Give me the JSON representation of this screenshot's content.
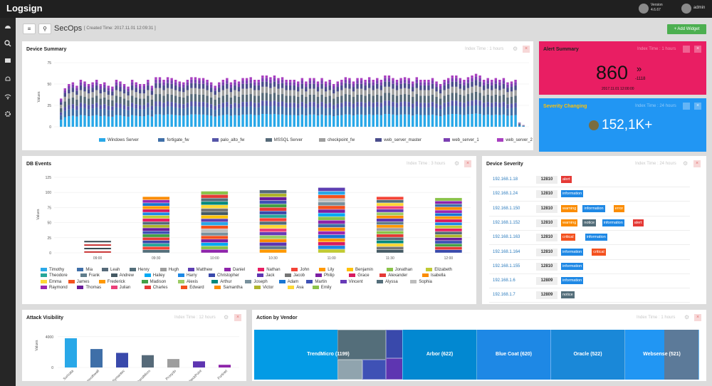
{
  "app": {
    "title": "Logsign",
    "version_label": "Version",
    "version_value": "4.6.67",
    "user": "admin"
  },
  "header": {
    "menu_icon": "menu-icon",
    "search_icon": "search-icon",
    "title": "SecOps",
    "created": "[ Created Time: 2017.11.01 12:09:31 ]",
    "add_widget": "+ Add Widget"
  },
  "sidebar": {
    "items": [
      "dashboard-icon",
      "search-icon",
      "reports-icon",
      "alarm-icon",
      "network-icon",
      "settings-icon"
    ]
  },
  "device_summary": {
    "title": "Device Summary",
    "meta": "Index Time : 1 hours",
    "chart_data": {
      "type": "bar",
      "stacked": true,
      "ylabel": "Values",
      "yticks": [
        0,
        25,
        50,
        75
      ],
      "ylim": [
        0,
        75
      ],
      "series": [
        {
          "name": "Windows Server",
          "color": "#29a8e8"
        },
        {
          "name": "fortigate_fw",
          "color": "#3f6fa8"
        },
        {
          "name": "palo_alto_fw",
          "color": "#5555a8"
        },
        {
          "name": "MSSQL Server",
          "color": "#566a79"
        },
        {
          "name": "checkpoint_fw",
          "color": "#9e9e9e"
        },
        {
          "name": "web_server_master",
          "color": "#4a4d8c"
        },
        {
          "name": "web_server_1",
          "color": "#7b3fb2"
        },
        {
          "name": "web_server_2",
          "color": "#a83fc0"
        }
      ],
      "totals": [
        33,
        45,
        50,
        52,
        48,
        55,
        53,
        50,
        52,
        55,
        50,
        52,
        48,
        47,
        55,
        53,
        50,
        47,
        55,
        52,
        50,
        50,
        55,
        48,
        58,
        58,
        55,
        58,
        57,
        55,
        53,
        52,
        55,
        58,
        58,
        57,
        57,
        55,
        52,
        48,
        52,
        55,
        57,
        52,
        55,
        53,
        57,
        57,
        58,
        55,
        55,
        60,
        60,
        58,
        60,
        57,
        58,
        55,
        55,
        55,
        53,
        57,
        53,
        57,
        57,
        53,
        57,
        53,
        55,
        50,
        53,
        55,
        58,
        57,
        53,
        57,
        57,
        55,
        58,
        55,
        57,
        55,
        60,
        60,
        57,
        55,
        57,
        58,
        57,
        53,
        58,
        55,
        55,
        55,
        57,
        53,
        50,
        55,
        57,
        60,
        60,
        57,
        55,
        58,
        60,
        62,
        60,
        55,
        57,
        55,
        57,
        55,
        57,
        52,
        53,
        55,
        5,
        2
      ]
    }
  },
  "alert_summary": {
    "title": "Alert Summary",
    "meta": "Index Time : 1 hours",
    "value": "860",
    "delta": "-1118",
    "date": "2017.11.01 12:00:00"
  },
  "severity_changing": {
    "title": "Severity Changing",
    "meta": "Index Time : 24 hours",
    "value": "152,1K+"
  },
  "db_events": {
    "title": "DB Events",
    "meta": "Index Time : 3 hours",
    "chart_data": {
      "type": "bar",
      "stacked": true,
      "ylabel": "Values",
      "yticks": [
        0,
        25,
        50,
        75,
        100,
        125
      ],
      "ylim": [
        0,
        125
      ],
      "categories": [
        "09:00",
        "09:30",
        "10:00",
        "10:30",
        "11:00",
        "11:30",
        "12:00"
      ],
      "totals": [
        20,
        93,
        102,
        104,
        108,
        93,
        91
      ],
      "series": [
        {
          "name": "Timothy",
          "color": "#29a8e8"
        },
        {
          "name": "Mia",
          "color": "#3f6fa8"
        },
        {
          "name": "Leah",
          "color": "#566a79"
        },
        {
          "name": "Henry",
          "color": "#546e7a"
        },
        {
          "name": "Hugh",
          "color": "#9e9e9e"
        },
        {
          "name": "Matthew",
          "color": "#5d3fb2"
        },
        {
          "name": "Daniel",
          "color": "#8e24aa"
        },
        {
          "name": "Nathan",
          "color": "#e91e63"
        },
        {
          "name": "John",
          "color": "#f44336"
        },
        {
          "name": "Lily",
          "color": "#ff9800"
        },
        {
          "name": "Benjamin",
          "color": "#ffc107"
        },
        {
          "name": "Jonathan",
          "color": "#8bc34a"
        },
        {
          "name": "Elizabeth",
          "color": "#c0ca33"
        },
        {
          "name": "Theodore",
          "color": "#26a69a"
        },
        {
          "name": "Frank",
          "color": "#607d8b"
        },
        {
          "name": "Andrew",
          "color": "#455a64"
        },
        {
          "name": "Hailey",
          "color": "#03a9f4"
        },
        {
          "name": "Harry",
          "color": "#1e88e5"
        },
        {
          "name": "Christopher",
          "color": "#3949ab"
        },
        {
          "name": "Jack",
          "color": "#5e35b1"
        },
        {
          "name": "Jacob",
          "color": "#757575"
        },
        {
          "name": "Philip",
          "color": "#7b1fa2"
        },
        {
          "name": "Grace",
          "color": "#d81b60"
        },
        {
          "name": "Alexander",
          "color": "#e53935"
        },
        {
          "name": "Isabella",
          "color": "#fb8c00"
        },
        {
          "name": "Emma",
          "color": "#fdd835"
        },
        {
          "name": "James",
          "color": "#f4511e"
        },
        {
          "name": "Frederick",
          "color": "#ff9800"
        },
        {
          "name": "Madison",
          "color": "#43a047"
        },
        {
          "name": "Alexis",
          "color": "#9ccc65"
        },
        {
          "name": "Arthur",
          "color": "#00897b"
        },
        {
          "name": "Joseph",
          "color": "#78909c"
        },
        {
          "name": "Adam",
          "color": "#1976d2"
        },
        {
          "name": "Martin",
          "color": "#3f51b5"
        },
        {
          "name": "Vincent",
          "color": "#673ab7"
        },
        {
          "name": "Alyssa",
          "color": "#546e7a"
        },
        {
          "name": "Sophia",
          "color": "#bdbdbd"
        },
        {
          "name": "Raymond",
          "color": "#9c27b0"
        },
        {
          "name": "Thomas",
          "color": "#6a1b9a"
        },
        {
          "name": "Julian",
          "color": "#ec407a"
        },
        {
          "name": "Charles",
          "color": "#e53935"
        },
        {
          "name": "Edward",
          "color": "#f4511e"
        },
        {
          "name": "Samantha",
          "color": "#fb8c00"
        },
        {
          "name": "Victor",
          "color": "#afb42b"
        },
        {
          "name": "Ava",
          "color": "#fdd835"
        },
        {
          "name": "Emily",
          "color": "#8bc34a"
        }
      ]
    }
  },
  "device_severity": {
    "title": "Device Severity",
    "meta": "Index Time : 24 hours",
    "rows": [
      {
        "ip": "192.168.1.18",
        "count": "12810",
        "tags": [
          {
            "t": "alert",
            "c": "#e53935"
          }
        ]
      },
      {
        "ip": "192.168.1.24",
        "count": "12810",
        "tags": [
          {
            "t": "information",
            "c": "#1e88e5"
          }
        ]
      },
      {
        "ip": "192.168.1.150",
        "count": "12810",
        "tags": [
          {
            "t": "warning",
            "c": "#fb8c00"
          },
          {
            "t": "information",
            "c": "#1e88e5"
          },
          {
            "t": "error",
            "c": "#fb8c00"
          }
        ]
      },
      {
        "ip": "192.168.1.152",
        "count": "12810",
        "tags": [
          {
            "t": "warning",
            "c": "#fb8c00"
          },
          {
            "t": "notice",
            "c": "#546e7a"
          },
          {
            "t": "information",
            "c": "#1e88e5"
          },
          {
            "t": "alert",
            "c": "#e53935"
          }
        ]
      },
      {
        "ip": "192.168.1.163",
        "count": "12810",
        "tags": [
          {
            "t": "critical",
            "c": "#f4511e"
          },
          {
            "t": "information",
            "c": "#1e88e5"
          }
        ]
      },
      {
        "ip": "192.168.1.164",
        "count": "12810",
        "tags": [
          {
            "t": "information",
            "c": "#1e88e5"
          },
          {
            "t": "critical",
            "c": "#f4511e"
          }
        ]
      },
      {
        "ip": "192.168.1.155",
        "count": "12810",
        "tags": [
          {
            "t": "information",
            "c": "#1e88e5"
          }
        ]
      },
      {
        "ip": "192.168.1.6",
        "count": "12809",
        "tags": [
          {
            "t": "information",
            "c": "#1e88e5"
          }
        ]
      },
      {
        "ip": "192.168.1.7",
        "count": "12809",
        "tags": [
          {
            "t": "notice",
            "c": "#546e7a"
          }
        ]
      }
    ]
  },
  "attack_visibility": {
    "title": "Attack Visibility",
    "meta": "Index Time : 12 hours",
    "chart_data": {
      "type": "bar",
      "ylabel": "Values",
      "yticks": [
        0,
        4000
      ],
      "ylim": [
        0,
        5000
      ],
      "categories": [
        "Suricata",
        "Smoothwall",
        "Symantec",
        "TrendMicro",
        "Proxydo",
        "CheckPoint",
        "Fortinet"
      ],
      "values": [
        3800,
        2400,
        1900,
        1600,
        1100,
        800,
        350
      ],
      "colors": [
        "#29a8e8",
        "#3f6fa8",
        "#3949ab",
        "#566a79",
        "#9e9e9e",
        "#5e35b1",
        "#8e24aa"
      ]
    }
  },
  "action_by_vendor": {
    "title": "Action by Vendor",
    "meta": "Index Time : 1 hours",
    "items": [
      {
        "label": "TrendMicro (1199)",
        "color": "#039be5"
      },
      {
        "label": "Arbor (622)",
        "color": "#0288d1"
      },
      {
        "label": "Blue Coat (620)",
        "color": "#1e88e5"
      },
      {
        "label": "Oracle (522)",
        "color": "#1a88d8"
      },
      {
        "label": "Websense (521)",
        "color": "#2196f3"
      }
    ]
  }
}
